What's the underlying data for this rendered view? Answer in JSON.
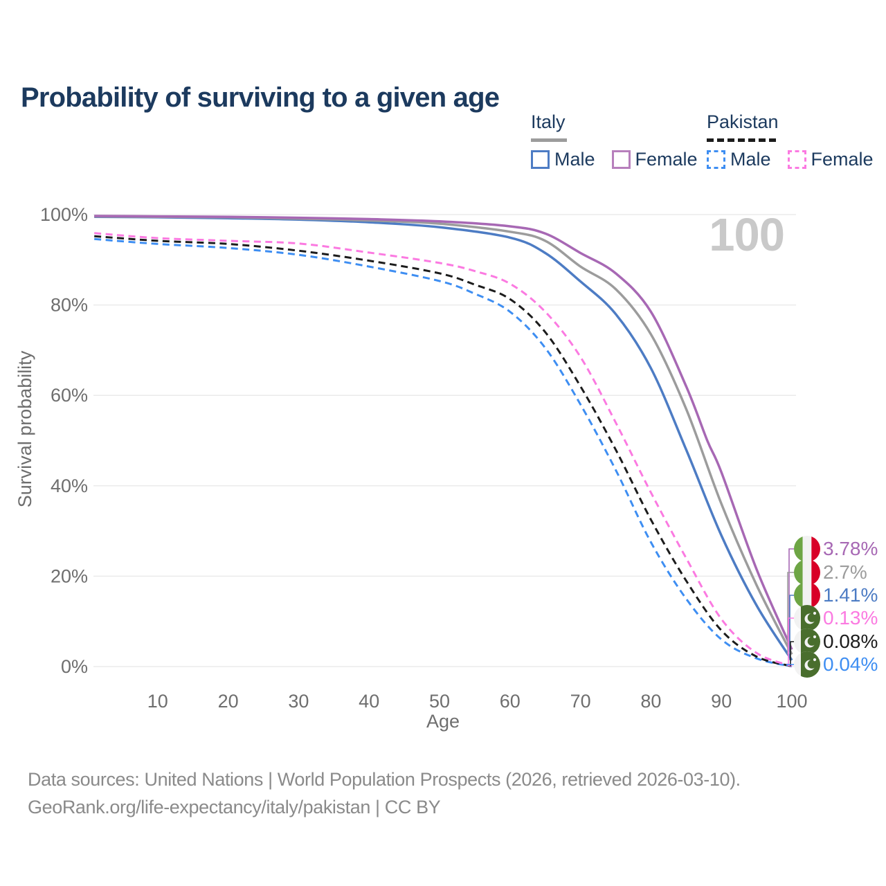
{
  "title": "Probability of surviving to a given age",
  "watermark": "100",
  "legend": {
    "groups": [
      {
        "label": "Italy",
        "line_style": "solid",
        "underline_color": "#9c9c9c",
        "items": [
          {
            "label": "Male",
            "color": "#4d7cc4"
          },
          {
            "label": "Female",
            "color": "#b77fbc"
          }
        ]
      },
      {
        "label": "Pakistan",
        "line_style": "dashed",
        "underline_color": "#1c1c1c",
        "items": [
          {
            "label": "Male",
            "color": "#3e8ef2"
          },
          {
            "label": "Female",
            "color": "#fb7ae1"
          }
        ]
      }
    ]
  },
  "chart_data": {
    "type": "line",
    "title": "Probability of surviving to a given age",
    "xlabel": "Age",
    "ylabel": "Survival probability",
    "xlim": [
      0,
      100
    ],
    "ylim": [
      0,
      100
    ],
    "grid": "horizontal",
    "x_ticks": [
      "10",
      "20",
      "30",
      "40",
      "50",
      "60",
      "70",
      "80",
      "90",
      "100"
    ],
    "y_ticks": [
      "0%",
      "20%",
      "40%",
      "60%",
      "80%",
      "100%"
    ],
    "series": [
      {
        "name": "Italy Female",
        "country": "Italy",
        "flag": "italy",
        "dash": "solid",
        "color": "#a768b4",
        "end_label": "3.78%",
        "points": [
          [
            1,
            99.7
          ],
          [
            10,
            99.6
          ],
          [
            20,
            99.5
          ],
          [
            30,
            99.3
          ],
          [
            40,
            99.0
          ],
          [
            50,
            98.5
          ],
          [
            60,
            97.4
          ],
          [
            65,
            95.8
          ],
          [
            70,
            91.5
          ],
          [
            75,
            87.0
          ],
          [
            80,
            78.5
          ],
          [
            85,
            62.0
          ],
          [
            88,
            50.0
          ],
          [
            90,
            43.0
          ],
          [
            95,
            21.5
          ],
          [
            100,
            3.78
          ]
        ]
      },
      {
        "name": "Italy Both sexes",
        "country": "Italy",
        "flag": "italy",
        "dash": "solid",
        "color": "#9c9c9c",
        "end_label": "2.7%",
        "points": [
          [
            1,
            99.6
          ],
          [
            10,
            99.5
          ],
          [
            20,
            99.4
          ],
          [
            30,
            99.1
          ],
          [
            40,
            98.7
          ],
          [
            50,
            98.0
          ],
          [
            60,
            96.2
          ],
          [
            65,
            94.2
          ],
          [
            70,
            88.5
          ],
          [
            75,
            83.5
          ],
          [
            80,
            73.5
          ],
          [
            85,
            57.0
          ],
          [
            90,
            36.0
          ],
          [
            95,
            18.0
          ],
          [
            100,
            2.7
          ]
        ]
      },
      {
        "name": "Italy Male",
        "country": "Italy",
        "flag": "italy",
        "dash": "solid",
        "color": "#4d7cc4",
        "end_label": "1.41%",
        "points": [
          [
            1,
            99.5
          ],
          [
            10,
            99.4
          ],
          [
            20,
            99.2
          ],
          [
            30,
            98.9
          ],
          [
            40,
            98.3
          ],
          [
            50,
            97.2
          ],
          [
            60,
            94.9
          ],
          [
            65,
            91.5
          ],
          [
            70,
            85.2
          ],
          [
            75,
            78.0
          ],
          [
            80,
            66.0
          ],
          [
            85,
            48.0
          ],
          [
            90,
            29.0
          ],
          [
            95,
            13.5
          ],
          [
            100,
            1.41
          ]
        ]
      },
      {
        "name": "Pakistan Female",
        "country": "Pakistan",
        "flag": "pakistan",
        "dash": "dashed",
        "color": "#fb7ae1",
        "end_label": "0.13%",
        "points": [
          [
            1,
            95.9
          ],
          [
            10,
            94.8
          ],
          [
            20,
            94.2
          ],
          [
            30,
            93.6
          ],
          [
            40,
            91.6
          ],
          [
            50,
            89.3
          ],
          [
            55,
            87.5
          ],
          [
            60,
            84.7
          ],
          [
            65,
            78.5
          ],
          [
            70,
            68.5
          ],
          [
            75,
            54.0
          ],
          [
            80,
            38.5
          ],
          [
            85,
            24.0
          ],
          [
            90,
            10.5
          ],
          [
            95,
            3.0
          ],
          [
            100,
            0.13
          ]
        ]
      },
      {
        "name": "Pakistan Both sexes",
        "country": "Pakistan",
        "flag": "pakistan",
        "dash": "dashed",
        "color": "#1c1c1c",
        "end_label": "0.08%",
        "points": [
          [
            1,
            95.2
          ],
          [
            10,
            94.2
          ],
          [
            20,
            93.5
          ],
          [
            30,
            92.0
          ],
          [
            40,
            89.8
          ],
          [
            50,
            87.0
          ],
          [
            55,
            84.5
          ],
          [
            60,
            81.3
          ],
          [
            65,
            74.0
          ],
          [
            70,
            62.0
          ],
          [
            75,
            48.0
          ],
          [
            80,
            32.5
          ],
          [
            85,
            19.0
          ],
          [
            90,
            8.0
          ],
          [
            95,
            2.2
          ],
          [
            100,
            0.08
          ]
        ]
      },
      {
        "name": "Pakistan Male",
        "country": "Pakistan",
        "flag": "pakistan",
        "dash": "dashed",
        "color": "#3e8ef2",
        "end_label": "0.04%",
        "points": [
          [
            1,
            94.6
          ],
          [
            10,
            93.5
          ],
          [
            20,
            92.6
          ],
          [
            30,
            91.1
          ],
          [
            40,
            88.5
          ],
          [
            50,
            85.3
          ],
          [
            55,
            82.5
          ],
          [
            60,
            78.5
          ],
          [
            65,
            70.5
          ],
          [
            70,
            58.0
          ],
          [
            75,
            43.5
          ],
          [
            80,
            27.5
          ],
          [
            85,
            15.0
          ],
          [
            90,
            6.0
          ],
          [
            95,
            1.8
          ],
          [
            100,
            0.04
          ]
        ]
      }
    ]
  },
  "footer": {
    "line1": "Data sources: United Nations | World Population Prospects (2026, retrieved 2026-03-10).",
    "line2": "GeoRank.org/life-expectancy/italy/pakistan | CC BY"
  }
}
